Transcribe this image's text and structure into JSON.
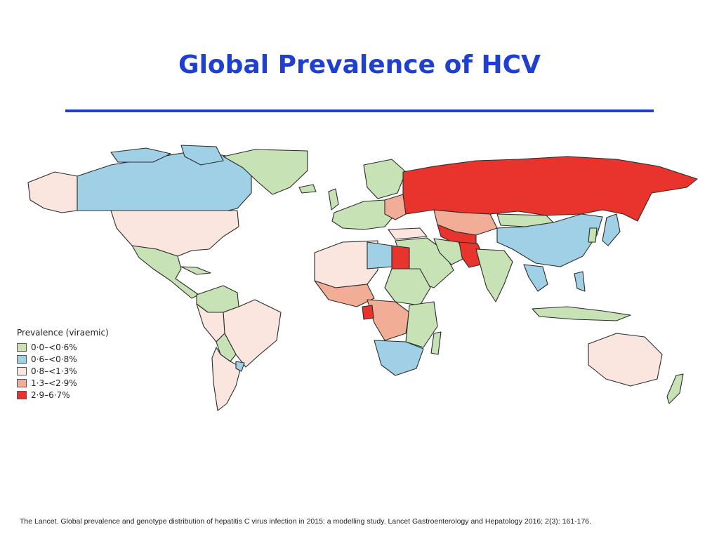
{
  "slide": {
    "title": "Global Prevalence of HCV",
    "citation": "The Lancet. Global prevalence and genotype distribution of hepatitis C virus infection in 2015: a modelling study. Lancet Gastroenterology and Hepatology 2016; 2(3): 161-176."
  },
  "legend": {
    "title": "Prevalence (viraemic)",
    "items": [
      {
        "label": "0·0–<0·6%",
        "color": "#c7e2b4"
      },
      {
        "label": "0·6–<0·8%",
        "color": "#9fd0e6"
      },
      {
        "label": "0·8–<1·3%",
        "color": "#fbe6df"
      },
      {
        "label": "1·3–<2·9%",
        "color": "#f2ad96"
      },
      {
        "label": "2·9–6·7%",
        "color": "#e8342c"
      }
    ]
  },
  "colors": {
    "title": "#1f3fd1",
    "rule": "#1f3fd1",
    "border": "#2b2b2b"
  }
}
